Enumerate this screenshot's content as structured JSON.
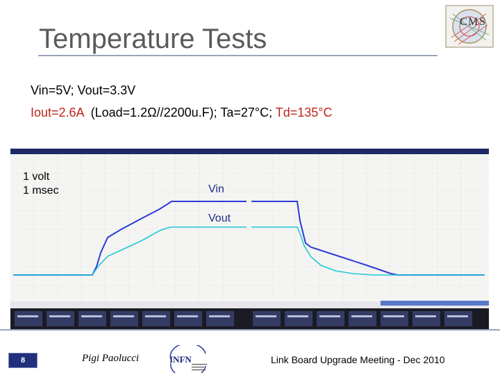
{
  "slide": {
    "title": "Temperature Tests",
    "line1": "Vin=5V; Vout=3.3V",
    "line2_current": "Iout=2.6A",
    "line2_load": "  (Load=1.2Ω//2200u.F); Ta=27°C; ",
    "line2_td": "Td=135°C"
  },
  "annotations": {
    "scale_volt": "1 volt",
    "scale_time": "1 msec",
    "vin_label": "Vin",
    "vout_label": "Vout"
  },
  "footer": {
    "page_number": "8",
    "author": "Pigi Paolucci",
    "meeting": "Link Board Upgrade Meeting - Dec 2010"
  },
  "logos": {
    "top_right": "cms-logo",
    "bottom": "infn-logo"
  },
  "colors": {
    "title": "#5a5a5a",
    "highlight_red": "#c0231c",
    "label_blue": "#1f2e8a",
    "trace_vin": "#2a3bd6",
    "trace_vout": "#22c8d8",
    "scope_background": "#000000",
    "rule": "#9aa3bd"
  }
}
